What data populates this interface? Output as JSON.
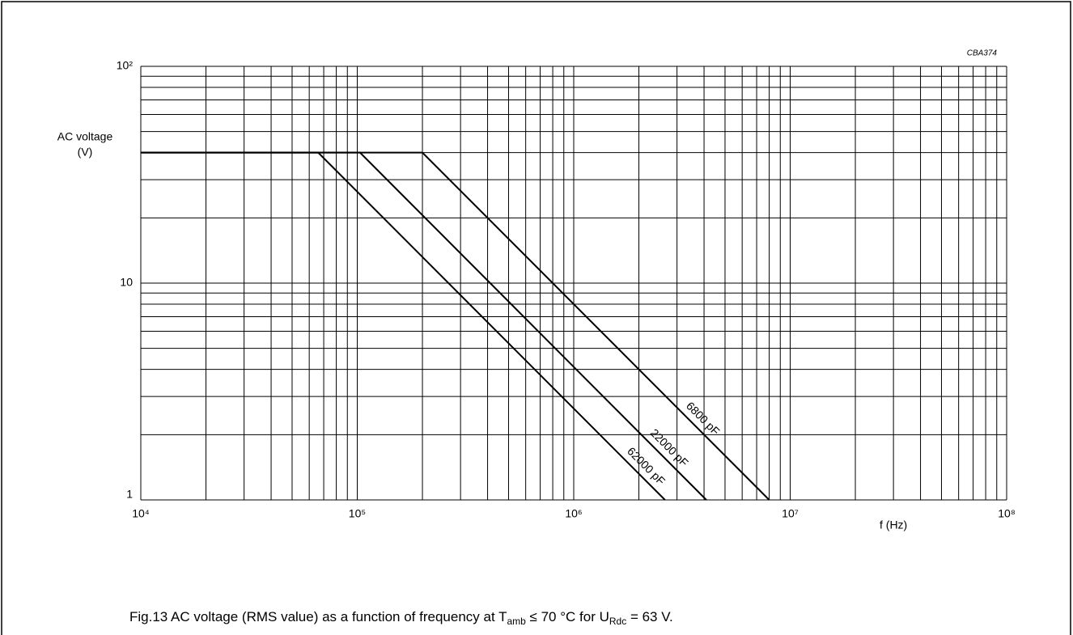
{
  "chart_data": {
    "type": "line",
    "caption": [
      "Fig.13  AC voltage (RMS value) as a function of frequency at T",
      "amb",
      " ≤ 70 °C for U",
      "Rdc",
      " = 63 V."
    ],
    "code": "CBA374",
    "ylabel": [
      "AC voltage",
      "(V)"
    ],
    "xlabel": "f  (Hz)",
    "xlog": true,
    "ylog": true,
    "grid": true,
    "color": "#000000",
    "xlim": [
      10000,
      100000000
    ],
    "ylim": [
      1,
      100
    ],
    "xticks": [
      {
        "value": 10000,
        "label": "10⁴"
      },
      {
        "value": 100000,
        "label": "10⁵"
      },
      {
        "value": 1000000,
        "label": "10⁶"
      },
      {
        "value": 10000000,
        "label": "10⁷"
      },
      {
        "value": 100000000,
        "label": "10⁸"
      }
    ],
    "yticks": [
      {
        "value": 1,
        "label": "1"
      },
      10,
      {
        "value": 100,
        "label": "10²"
      }
    ],
    "xminorticks": [
      20000,
      30000,
      40000,
      50000,
      60000,
      70000,
      80000,
      90000,
      200000,
      300000,
      400000,
      500000,
      600000,
      700000,
      800000,
      900000,
      2000000,
      3000000,
      4000000,
      5000000,
      6000000,
      7000000,
      8000000,
      9000000,
      20000000,
      30000000,
      40000000,
      50000000,
      60000000,
      70000000,
      80000000,
      90000000
    ],
    "yminorticks": [
      2,
      3,
      4,
      5,
      6,
      7,
      8,
      9,
      20,
      30,
      40,
      50,
      60,
      70,
      80,
      90
    ],
    "series": [
      {
        "name": "6800 pF",
        "x": [
          10000,
          200000,
          8000000
        ],
        "values": [
          40,
          40,
          1
        ]
      },
      {
        "name": "22000 pF",
        "x": [
          10000,
          103000,
          4100000
        ],
        "values": [
          40,
          40,
          1
        ]
      },
      {
        "name": "62000 pF",
        "x": [
          10000,
          66000,
          2640000
        ],
        "values": [
          40,
          40,
          1
        ]
      }
    ]
  }
}
